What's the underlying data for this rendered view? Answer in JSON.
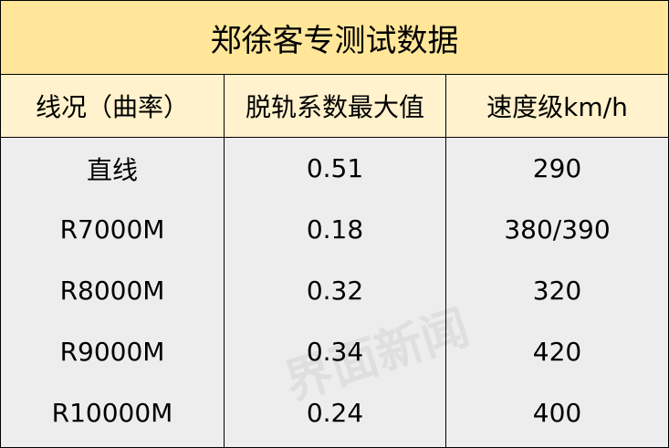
{
  "header": {
    "title": "郑徐客专测试数据"
  },
  "table": {
    "headers": [
      "线况（曲率）",
      "脱轨系数最大值",
      "速度级km/h"
    ],
    "rows": [
      [
        "直线",
        "0.51",
        "290"
      ],
      [
        "R7000M",
        "0.18",
        "380/390"
      ],
      [
        "R8000M",
        "0.32",
        "320"
      ],
      [
        "R9000M",
        "0.34",
        "420"
      ],
      [
        "R10000M",
        "0.24",
        "400"
      ]
    ]
  },
  "watermark": "界面新闻"
}
